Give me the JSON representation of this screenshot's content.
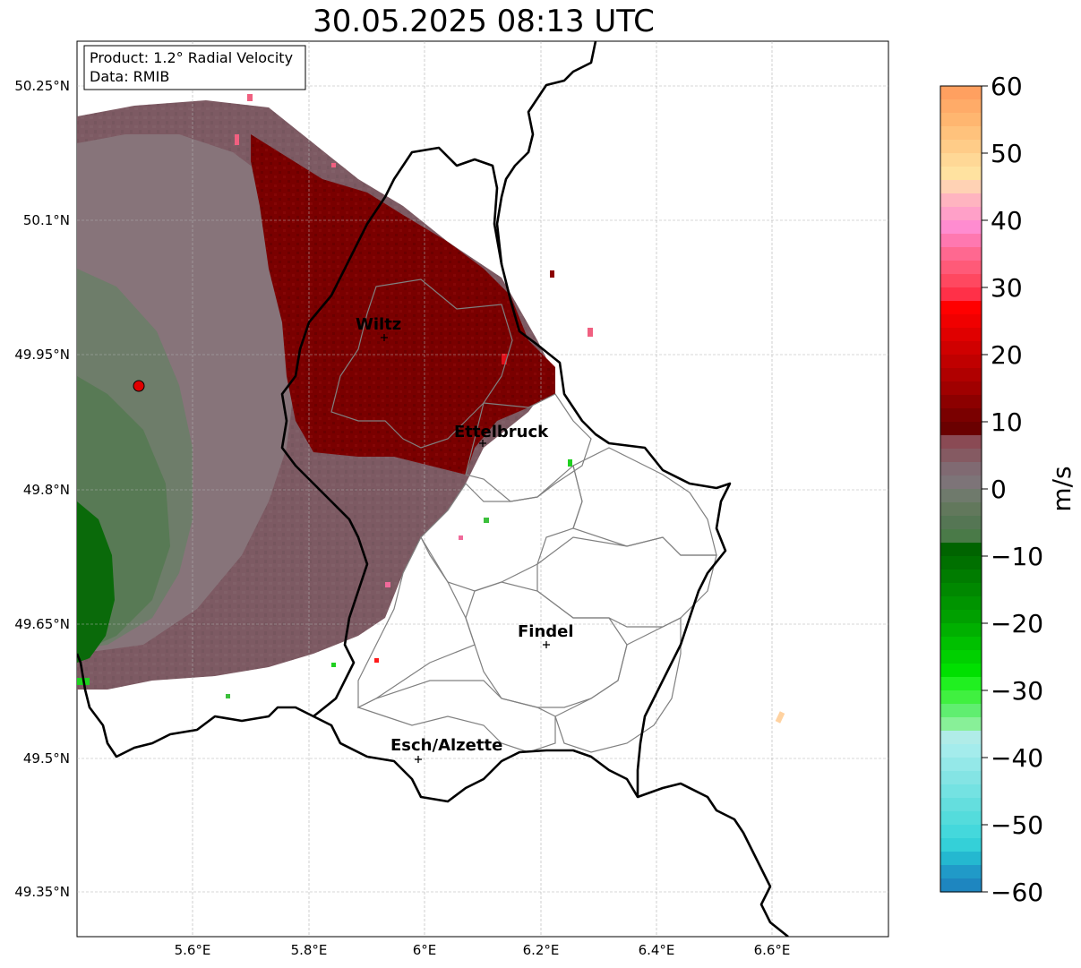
{
  "title": "30.05.2025 08:13 UTC",
  "info_box": {
    "product": "Product: 1.2° Radial Velocity",
    "data": "Data: RMIB"
  },
  "colorbar": {
    "label": "m/s",
    "ticks": [
      "60",
      "50",
      "40",
      "30",
      "20",
      "10",
      "0",
      "−10",
      "−20",
      "−30",
      "−40",
      "−50",
      "−60"
    ],
    "range": [
      -60,
      60
    ]
  },
  "axes": {
    "lon_ticks": [
      "5.6°E",
      "5.8°E",
      "6°E",
      "6.2°E",
      "6.4°E",
      "6.6°E"
    ],
    "lat_ticks": [
      "50.25°N",
      "50.1°N",
      "49.95°N",
      "49.8°N",
      "49.65°N",
      "49.5°N",
      "49.35°N"
    ]
  },
  "cities": [
    {
      "name": "Wiltz"
    },
    {
      "name": "Ettelbruck"
    },
    {
      "name": "Findel"
    },
    {
      "name": "Esch/Alzette"
    }
  ],
  "colors": {
    "outbound_strong": "#7a0000",
    "outbound_weak": "#7d5a63",
    "near_zero": "#6e7d6a",
    "inbound_weak": "#587a55",
    "inbound_strong": "#0a6a0a",
    "radar_site": "#e00000"
  }
}
